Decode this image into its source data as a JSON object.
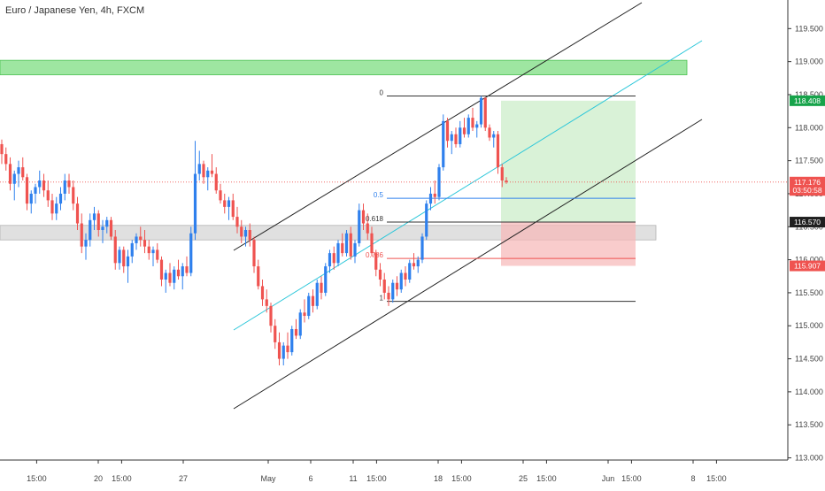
{
  "header": {
    "title": "Euro / Japanese Yen, 4h, FXCM"
  },
  "chart_data": {
    "type": "candlestick",
    "symbol": "Euro / Japanese Yen",
    "interval": "4h",
    "source": "FXCM",
    "ylim": [
      112.9,
      120.0
    ],
    "y_ticks": [
      {
        "value": 119.5,
        "label": "119.500"
      },
      {
        "value": 119.0,
        "label": "119.000"
      },
      {
        "value": 118.5,
        "label": "118.500"
      },
      {
        "value": 118.0,
        "label": "118.000"
      },
      {
        "value": 117.5,
        "label": "117.500"
      },
      {
        "value": 117.0,
        "label": "117.000"
      },
      {
        "value": 116.5,
        "label": "116.500"
      },
      {
        "value": 116.0,
        "label": "116.000"
      },
      {
        "value": 115.5,
        "label": "115.500"
      },
      {
        "value": 115.0,
        "label": "115.000"
      },
      {
        "value": 114.5,
        "label": "114.500"
      },
      {
        "value": 114.0,
        "label": "114.000"
      },
      {
        "value": 113.5,
        "label": "113.500"
      },
      {
        "value": 113.0,
        "label": "113.000"
      }
    ],
    "x_ticks": [
      {
        "t": 0.55,
        "label": "15:00"
      },
      {
        "t": 2,
        "label": "20"
      },
      {
        "t": 2.55,
        "label": "15:00"
      },
      {
        "t": 4,
        "label": "27"
      },
      {
        "t": 6,
        "label": "May"
      },
      {
        "t": 7,
        "label": "6"
      },
      {
        "t": 8,
        "label": "11"
      },
      {
        "t": 8.55,
        "label": "15:00"
      },
      {
        "t": 10,
        "label": "18"
      },
      {
        "t": 10.55,
        "label": "15:00"
      },
      {
        "t": 12,
        "label": "25"
      },
      {
        "t": 12.55,
        "label": "15:00"
      },
      {
        "t": 14,
        "label": "Jun"
      },
      {
        "t": 14.55,
        "label": "15:00"
      },
      {
        "t": 16,
        "label": "8"
      },
      {
        "t": 16.55,
        "label": "15:00"
      }
    ],
    "price_badges": [
      {
        "value": 118.408,
        "label": "118.408",
        "color": "#16a34a"
      },
      {
        "value": 117.176,
        "label": "117.176",
        "color": "#ef5350"
      },
      {
        "value": 117.05,
        "label": "03:50:58",
        "color": "#ef5350"
      },
      {
        "value": 116.57,
        "label": "116.570",
        "color": "#1f1f1f"
      },
      {
        "value": 115.907,
        "label": "115.907",
        "color": "#ef5350"
      }
    ],
    "current_price": 117.176,
    "fibonacci": [
      {
        "level": "0",
        "price": 118.48
      },
      {
        "level": "0.5",
        "price": 116.93
      },
      {
        "level": "0.618",
        "price": 116.57
      },
      {
        "level": "0.786",
        "price": 116.02
      },
      {
        "level": "1",
        "price": 115.37
      }
    ],
    "zones": [
      {
        "kind": "resistance",
        "from": 118.8,
        "to": 119.02,
        "color": "#86e08a"
      },
      {
        "kind": "support",
        "from": 116.3,
        "to": 116.52,
        "color": "#d8d8d8"
      }
    ],
    "position": {
      "entry": 116.57,
      "target": 118.408,
      "stop": 115.907
    },
    "colors": {
      "up": "#2f80ed",
      "down": "#ef5350",
      "channel": "#1f1f1f",
      "midline": "#29c6d9"
    },
    "candles": [
      [
        117.75,
        117.82,
        117.45,
        117.6
      ],
      [
        117.6,
        117.7,
        117.35,
        117.45
      ],
      [
        117.45,
        117.55,
        117.05,
        117.15
      ],
      [
        117.15,
        117.35,
        116.9,
        117.3
      ],
      [
        117.3,
        117.5,
        117.1,
        117.4
      ],
      [
        117.4,
        117.55,
        117.2,
        117.25
      ],
      [
        117.25,
        117.3,
        116.75,
        116.85
      ],
      [
        116.85,
        117.05,
        116.7,
        117.0
      ],
      [
        117.0,
        117.15,
        116.85,
        117.1
      ],
      [
        117.1,
        117.35,
        117.0,
        117.2
      ],
      [
        117.2,
        117.3,
        116.95,
        117.05
      ],
      [
        117.05,
        117.2,
        116.8,
        116.9
      ],
      [
        116.9,
        117.0,
        116.6,
        116.7
      ],
      [
        116.7,
        116.95,
        116.6,
        116.85
      ],
      [
        116.85,
        117.1,
        116.75,
        117.0
      ],
      [
        117.0,
        117.3,
        116.9,
        117.2
      ],
      [
        117.2,
        117.3,
        117.0,
        117.1
      ],
      [
        117.1,
        117.2,
        116.75,
        116.85
      ],
      [
        116.85,
        116.95,
        116.45,
        116.55
      ],
      [
        116.55,
        116.7,
        116.1,
        116.2
      ],
      [
        116.2,
        116.4,
        116.0,
        116.3
      ],
      [
        116.3,
        116.7,
        116.2,
        116.6
      ],
      [
        116.6,
        116.8,
        116.45,
        116.7
      ],
      [
        116.7,
        116.75,
        116.35,
        116.45
      ],
      [
        116.45,
        116.6,
        116.25,
        116.5
      ],
      [
        116.5,
        116.65,
        116.4,
        116.6
      ],
      [
        116.6,
        116.65,
        116.3,
        116.35
      ],
      [
        116.35,
        116.45,
        115.85,
        115.95
      ],
      [
        115.95,
        116.2,
        115.85,
        116.15
      ],
      [
        116.15,
        116.2,
        115.8,
        115.9
      ],
      [
        115.9,
        116.15,
        115.65,
        116.05
      ],
      [
        116.05,
        116.3,
        115.95,
        116.25
      ],
      [
        116.25,
        116.4,
        116.15,
        116.35
      ],
      [
        116.35,
        116.5,
        116.2,
        116.3
      ],
      [
        116.3,
        116.45,
        116.1,
        116.2
      ],
      [
        116.2,
        116.3,
        116.0,
        116.1
      ],
      [
        116.1,
        116.2,
        115.9,
        116.15
      ],
      [
        116.15,
        116.25,
        115.95,
        116.0
      ],
      [
        116.0,
        116.05,
        115.6,
        115.7
      ],
      [
        115.7,
        115.85,
        115.5,
        115.8
      ],
      [
        115.8,
        115.95,
        115.6,
        115.65
      ],
      [
        115.65,
        115.9,
        115.55,
        115.85
      ],
      [
        115.85,
        116.0,
        115.7,
        115.75
      ],
      [
        115.75,
        115.95,
        115.55,
        115.9
      ],
      [
        115.9,
        116.05,
        115.75,
        115.8
      ],
      [
        115.8,
        116.5,
        115.75,
        116.4
      ],
      [
        116.4,
        117.8,
        116.3,
        117.3
      ],
      [
        117.3,
        117.65,
        117.2,
        117.45
      ],
      [
        117.45,
        117.5,
        117.15,
        117.25
      ],
      [
        117.25,
        117.4,
        117.05,
        117.35
      ],
      [
        117.35,
        117.6,
        117.25,
        117.3
      ],
      [
        117.3,
        117.4,
        117.0,
        117.05
      ],
      [
        117.05,
        117.15,
        116.85,
        116.9
      ],
      [
        116.9,
        117.0,
        116.7,
        116.8
      ],
      [
        116.8,
        116.95,
        116.6,
        116.9
      ],
      [
        116.9,
        117.0,
        116.6,
        116.65
      ],
      [
        116.65,
        116.8,
        116.4,
        116.5
      ],
      [
        116.5,
        116.6,
        116.25,
        116.35
      ],
      [
        116.35,
        116.5,
        116.2,
        116.45
      ],
      [
        116.45,
        116.55,
        116.2,
        116.3
      ],
      [
        116.3,
        116.35,
        115.8,
        115.9
      ],
      [
        115.9,
        116.0,
        115.55,
        115.6
      ],
      [
        115.6,
        115.7,
        115.3,
        115.4
      ],
      [
        115.4,
        115.55,
        115.2,
        115.3
      ],
      [
        115.3,
        115.35,
        114.9,
        115.0
      ],
      [
        115.0,
        115.1,
        114.65,
        114.75
      ],
      [
        114.75,
        114.9,
        114.4,
        114.5
      ],
      [
        114.5,
        114.75,
        114.4,
        114.7
      ],
      [
        114.7,
        114.9,
        114.5,
        114.6
      ],
      [
        114.6,
        115.0,
        114.55,
        114.95
      ],
      [
        114.95,
        115.1,
        114.8,
        114.85
      ],
      [
        114.85,
        115.25,
        114.8,
        115.2
      ],
      [
        115.2,
        115.4,
        115.05,
        115.15
      ],
      [
        115.15,
        115.5,
        115.1,
        115.45
      ],
      [
        115.45,
        115.55,
        115.2,
        115.3
      ],
      [
        115.3,
        115.7,
        115.25,
        115.65
      ],
      [
        115.65,
        115.75,
        115.4,
        115.5
      ],
      [
        115.5,
        115.95,
        115.45,
        115.9
      ],
      [
        115.9,
        116.15,
        115.8,
        116.1
      ],
      [
        116.1,
        116.2,
        115.85,
        115.95
      ],
      [
        115.95,
        116.3,
        115.9,
        116.25
      ],
      [
        116.25,
        116.4,
        116.05,
        116.1
      ],
      [
        116.1,
        116.45,
        116.05,
        116.4
      ],
      [
        116.4,
        116.5,
        116.0,
        116.05
      ],
      [
        116.05,
        116.3,
        115.95,
        116.25
      ],
      [
        116.25,
        116.85,
        116.2,
        116.75
      ],
      [
        116.75,
        116.85,
        116.45,
        116.55
      ],
      [
        116.55,
        116.7,
        116.3,
        116.4
      ],
      [
        116.4,
        116.5,
        116.05,
        116.1
      ],
      [
        116.1,
        116.15,
        115.75,
        115.85
      ],
      [
        115.85,
        115.95,
        115.6,
        115.7
      ],
      [
        115.7,
        115.8,
        115.4,
        115.5
      ],
      [
        115.5,
        115.6,
        115.3,
        115.4
      ],
      [
        115.4,
        115.7,
        115.35,
        115.65
      ],
      [
        115.65,
        115.75,
        115.45,
        115.55
      ],
      [
        115.55,
        115.85,
        115.5,
        115.8
      ],
      [
        115.8,
        115.9,
        115.6,
        115.7
      ],
      [
        115.7,
        116.0,
        115.65,
        115.95
      ],
      [
        115.95,
        116.1,
        115.85,
        115.9
      ],
      [
        115.9,
        116.05,
        115.8,
        116.0
      ],
      [
        116.0,
        116.4,
        115.95,
        116.35
      ],
      [
        116.35,
        116.9,
        116.3,
        116.85
      ],
      [
        116.85,
        117.1,
        116.75,
        117.0
      ],
      [
        117.0,
        117.2,
        116.85,
        116.95
      ],
      [
        116.95,
        117.45,
        116.9,
        117.4
      ],
      [
        117.4,
        118.2,
        117.35,
        118.1
      ],
      [
        118.1,
        118.15,
        117.7,
        117.8
      ],
      [
        117.8,
        117.95,
        117.6,
        117.9
      ],
      [
        117.9,
        118.0,
        117.7,
        117.75
      ],
      [
        117.75,
        118.1,
        117.7,
        118.0
      ],
      [
        118.0,
        118.15,
        117.85,
        117.9
      ],
      [
        117.9,
        118.2,
        117.85,
        118.15
      ],
      [
        118.15,
        118.3,
        117.95,
        118.0
      ],
      [
        118.0,
        118.1,
        117.85,
        118.05
      ],
      [
        118.05,
        118.48,
        118.0,
        118.45
      ],
      [
        118.45,
        118.46,
        117.95,
        118.0
      ],
      [
        118.0,
        118.05,
        117.8,
        117.85
      ],
      [
        117.85,
        117.95,
        117.7,
        117.9
      ],
      [
        117.9,
        117.95,
        117.3,
        117.4
      ],
      [
        117.4,
        117.45,
        117.1,
        117.2
      ],
      [
        117.2,
        117.25,
        117.15,
        117.176
      ]
    ]
  }
}
